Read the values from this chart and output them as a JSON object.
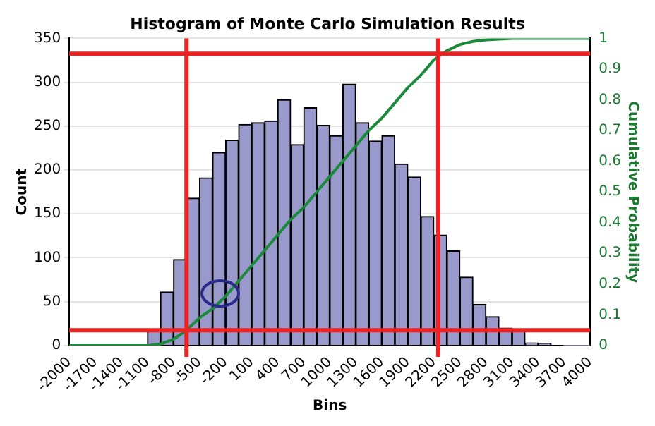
{
  "chart_data": {
    "type": "histogram",
    "title": "Histogram of Monte Carlo Simulation Results",
    "xlabel": "Bins",
    "ylabel": "Count",
    "y2label": "Cumulative Probability",
    "bins": [
      -2000,
      -1850,
      -1700,
      -1550,
      -1400,
      -1250,
      -1100,
      -950,
      -800,
      -650,
      -500,
      -350,
      -200,
      -50,
      100,
      250,
      400,
      550,
      700,
      850,
      1000,
      1150,
      1300,
      1450,
      1600,
      1750,
      1900,
      2050,
      2200,
      2350,
      2500,
      2650,
      2800,
      2950,
      3100,
      3250,
      3400,
      3550,
      3700,
      3850,
      4000
    ],
    "values": [
      0,
      0,
      0,
      0,
      0,
      0,
      17,
      61,
      98,
      168,
      191,
      220,
      234,
      252,
      254,
      256,
      280,
      229,
      271,
      251,
      239,
      298,
      254,
      233,
      239,
      207,
      192,
      147,
      126,
      108,
      78,
      47,
      33,
      20,
      18,
      3,
      2,
      null,
      0,
      0
    ],
    "color": "#9999cc",
    "series": [
      {
        "type": "line",
        "axis": "y2",
        "color": "#1a8a3a",
        "x": [
          -2000,
          -1100,
          -950,
          -800,
          -650,
          -500,
          -350,
          -200,
          -50,
          100,
          250,
          400,
          550,
          700,
          850,
          1000,
          1150,
          1300,
          1450,
          1600,
          1750,
          1900,
          2050,
          2200,
          2350,
          2500,
          2650,
          2800,
          3100,
          4000
        ],
        "values": [
          0,
          0,
          0.005,
          0.02,
          0.05,
          0.09,
          0.12,
          0.16,
          0.21,
          0.26,
          0.31,
          0.36,
          0.41,
          0.45,
          0.5,
          0.55,
          0.6,
          0.65,
          0.7,
          0.74,
          0.79,
          0.84,
          0.88,
          0.93,
          0.96,
          0.98,
          0.99,
          0.995,
          1,
          1
        ]
      }
    ],
    "xlim": [
      -2000,
      4000
    ],
    "xticks": [
      -2000,
      -1700,
      -1400,
      -1100,
      -800,
      -500,
      -200,
      100,
      400,
      700,
      1000,
      1300,
      1600,
      1900,
      2200,
      2500,
      2800,
      3100,
      3400,
      3700,
      4000
    ],
    "ylim": [
      0,
      350
    ],
    "yticks": [
      0,
      50,
      100,
      150,
      200,
      250,
      300,
      350
    ],
    "y2lim": [
      0,
      1
    ],
    "y2ticks": [
      0,
      0.1,
      0.2,
      0.3,
      0.4,
      0.5,
      0.6,
      0.7,
      0.8,
      0.9,
      1
    ],
    "ref_lines": [
      {
        "axis": "x",
        "value": -650,
        "color": "#ee2222"
      },
      {
        "axis": "x",
        "value": 2250,
        "color": "#ee2222"
      },
      {
        "axis": "y2",
        "value": 0.05,
        "color": "#ee2222"
      },
      {
        "axis": "y2",
        "value": 0.95,
        "color": "#ee2222"
      }
    ],
    "grid": "y",
    "legend": false,
    "marker": "none",
    "line_style": "solid"
  }
}
